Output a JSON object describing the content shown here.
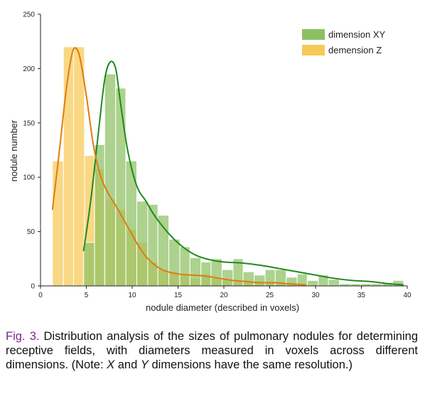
{
  "chart_data": {
    "type": "histogram",
    "xlabel": "nodule diameter (described in voxels)",
    "ylabel": "nodule number",
    "xlim": [
      0,
      40
    ],
    "ylim": [
      0,
      250
    ],
    "xticks": [
      0,
      5,
      10,
      15,
      20,
      25,
      30,
      35,
      40
    ],
    "yticks": [
      0,
      50,
      100,
      150,
      200,
      250
    ],
    "grid": false,
    "legend": "top-right",
    "series": [
      {
        "name": "dimension XY",
        "color": "#8dc063",
        "line_color": "#1f8a1f",
        "bins": [
          [
            4.7,
            5.9,
            40
          ],
          [
            5.9,
            7.0,
            130
          ],
          [
            7.0,
            8.2,
            195
          ],
          [
            8.2,
            9.3,
            182
          ],
          [
            9.3,
            10.5,
            115
          ],
          [
            10.5,
            11.7,
            78
          ],
          [
            11.7,
            12.8,
            75
          ],
          [
            12.8,
            14.0,
            65
          ],
          [
            14.0,
            15.2,
            43
          ],
          [
            15.2,
            16.3,
            36
          ],
          [
            16.3,
            17.5,
            26
          ],
          [
            17.5,
            18.6,
            22
          ],
          [
            18.6,
            19.8,
            25
          ],
          [
            19.8,
            21.0,
            15
          ],
          [
            21.0,
            22.1,
            25
          ],
          [
            22.1,
            23.3,
            13
          ],
          [
            23.3,
            24.5,
            10
          ],
          [
            24.5,
            25.6,
            15
          ],
          [
            25.6,
            26.8,
            15
          ],
          [
            26.8,
            28.0,
            8
          ],
          [
            28.0,
            29.1,
            11
          ],
          [
            29.1,
            30.3,
            5
          ],
          [
            30.3,
            31.4,
            10
          ],
          [
            31.4,
            32.6,
            6
          ],
          [
            32.6,
            33.8,
            2
          ],
          [
            33.8,
            34.9,
            2
          ],
          [
            34.9,
            36.1,
            2
          ],
          [
            36.1,
            37.3,
            2
          ],
          [
            37.3,
            38.4,
            3
          ],
          [
            38.4,
            39.6,
            5
          ]
        ],
        "kde": [
          [
            4.7,
            32
          ],
          [
            5.5,
            80
          ],
          [
            6.3,
            140
          ],
          [
            7.0,
            190
          ],
          [
            7.6,
            206
          ],
          [
            8.2,
            200
          ],
          [
            8.7,
            170
          ],
          [
            9.5,
            125
          ],
          [
            10.5,
            92
          ],
          [
            11.5,
            78
          ],
          [
            12.5,
            64
          ],
          [
            14,
            48
          ],
          [
            15.5,
            36
          ],
          [
            17,
            28
          ],
          [
            18.5,
            24
          ],
          [
            20,
            22
          ],
          [
            22,
            21
          ],
          [
            24,
            19
          ],
          [
            26,
            16
          ],
          [
            28,
            13
          ],
          [
            30,
            10
          ],
          [
            32,
            7
          ],
          [
            34,
            5
          ],
          [
            36,
            4
          ],
          [
            38,
            2
          ],
          [
            39.6,
            1
          ]
        ]
      },
      {
        "name": "demension Z",
        "color": "#f6c955",
        "line_color": "#e07b10",
        "bins": [
          [
            1.3,
            2.5,
            115
          ],
          [
            2.5,
            3.6,
            220
          ],
          [
            3.6,
            4.8,
            220
          ],
          [
            4.8,
            5.9,
            120
          ],
          [
            5.9,
            7.1,
            108
          ],
          [
            7.1,
            8.2,
            80
          ],
          [
            8.2,
            9.4,
            70
          ],
          [
            9.4,
            10.5,
            52
          ],
          [
            10.5,
            11.7,
            40
          ],
          [
            11.7,
            12.8,
            22
          ],
          [
            12.8,
            14.0,
            15
          ],
          [
            14.0,
            15.1,
            13
          ],
          [
            15.1,
            16.3,
            10
          ],
          [
            16.3,
            17.4,
            7
          ],
          [
            17.4,
            18.6,
            11
          ],
          [
            18.6,
            19.8,
            7
          ],
          [
            19.8,
            20.9,
            6
          ],
          [
            20.9,
            22.1,
            5
          ],
          [
            22.1,
            23.2,
            4
          ],
          [
            23.2,
            24.4,
            3
          ],
          [
            24.4,
            25.5,
            3
          ],
          [
            25.5,
            26.7,
            4
          ],
          [
            26.7,
            27.8,
            3
          ],
          [
            27.8,
            29.0,
            2
          ]
        ],
        "kde": [
          [
            1.3,
            70
          ],
          [
            2.0,
            120
          ],
          [
            2.8,
            180
          ],
          [
            3.4,
            212
          ],
          [
            3.8,
            219
          ],
          [
            4.3,
            210
          ],
          [
            5.0,
            175
          ],
          [
            5.8,
            128
          ],
          [
            6.6,
            100
          ],
          [
            7.4,
            85
          ],
          [
            8.2,
            74
          ],
          [
            9.0,
            62
          ],
          [
            9.8,
            50
          ],
          [
            10.6,
            38
          ],
          [
            11.5,
            27
          ],
          [
            12.5,
            19
          ],
          [
            13.5,
            14
          ],
          [
            15,
            11
          ],
          [
            16.5,
            10
          ],
          [
            18,
            9
          ],
          [
            19.5,
            7
          ],
          [
            21,
            5
          ],
          [
            22.5,
            4
          ],
          [
            24,
            3
          ],
          [
            25.5,
            3
          ],
          [
            27,
            2
          ],
          [
            29,
            1
          ]
        ]
      }
    ]
  },
  "caption": {
    "label": "Fig. 3.",
    "part1": "Distribution analysis of the sizes of pulmonary nodules for determining receptive fields, with diameters measured in voxels across different dimensions. (Note: ",
    "var_x": "X",
    "and": " and ",
    "var_y": "Y",
    "part2": " dimensions have the same resolution.)"
  }
}
